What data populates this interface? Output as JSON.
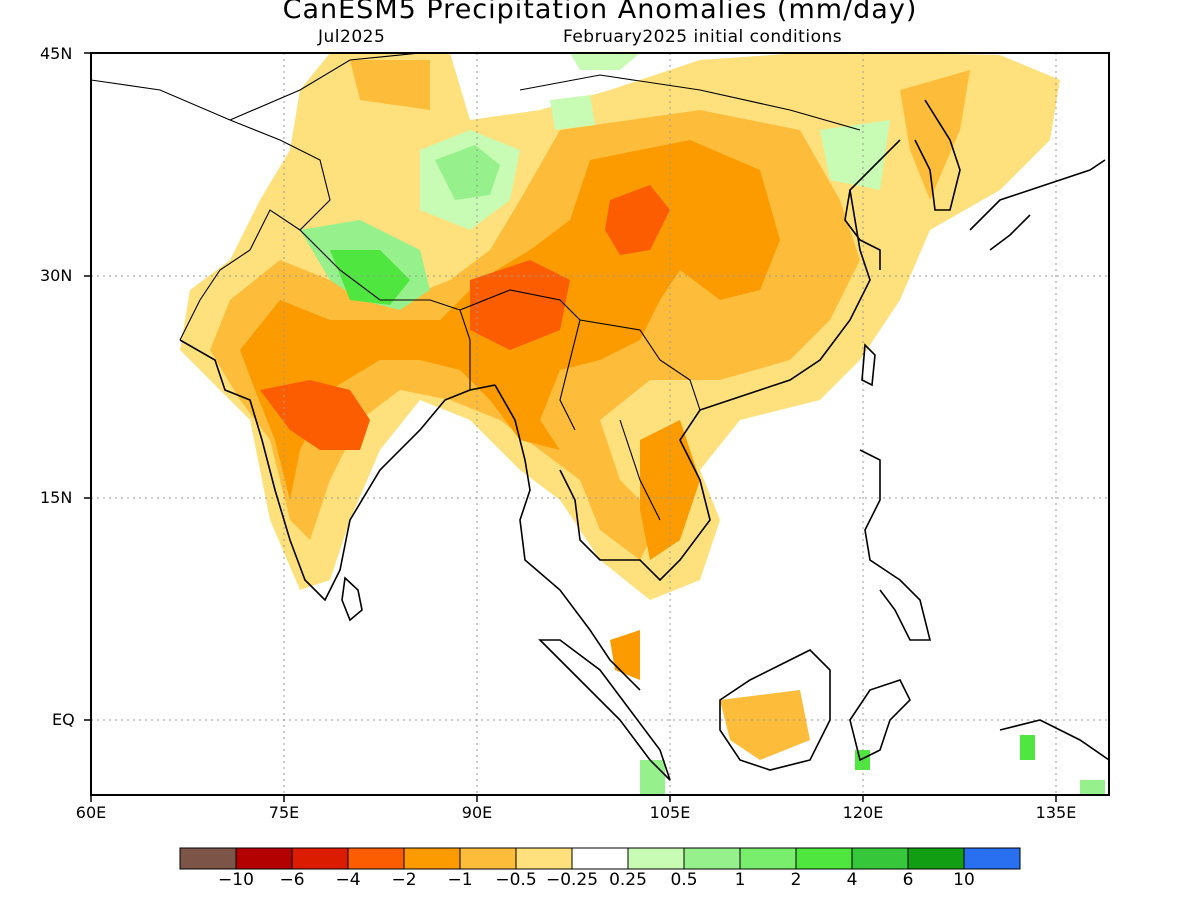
{
  "header": {
    "title": "CanESM5 Precipitation Anomalies (mm/day)",
    "valid_month": "Jul2025",
    "init_conditions": "February2025 initial conditions"
  },
  "axes": {
    "lat_labels": [
      "45N",
      "30N",
      "15N",
      "EQ"
    ],
    "lon_labels": [
      "60E",
      "75E",
      "90E",
      "105E",
      "120E",
      "135E"
    ]
  },
  "colorbar": {
    "colors": [
      "#7d5548",
      "#b30000",
      "#dc1c00",
      "#fb5d00",
      "#fb9b00",
      "#fdbd3b",
      "#fee17c",
      "#ffffff",
      "#c8fcb4",
      "#96f08c",
      "#78ee6c",
      "#50e640",
      "#36c83a",
      "#129e12",
      "#2870f0"
    ],
    "labels": [
      "−10",
      "−6",
      "−4",
      "−2",
      "−1",
      "−0.5",
      "−0.25",
      "0.25",
      "0.5",
      "1",
      "2",
      "4",
      "6",
      "10"
    ]
  }
}
